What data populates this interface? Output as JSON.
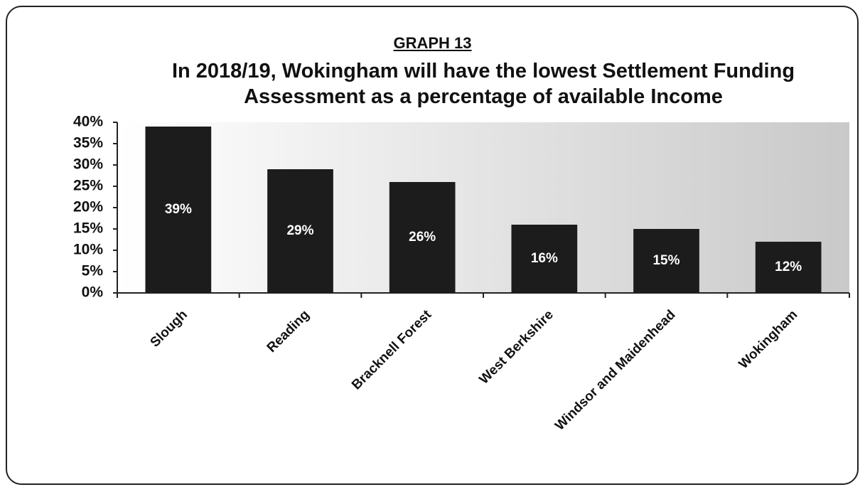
{
  "chart_data": {
    "type": "bar",
    "title": "GRAPH 13",
    "subtitle": "In 2018/19, Wokingham will have the lowest Settlement Funding Assessment as a percentage of available Income",
    "categories": [
      "Slough",
      "Reading",
      "Bracknell Forest",
      "West Berkshire",
      "Windsor and Maidenhead",
      "Wokingham"
    ],
    "values": [
      39,
      29,
      26,
      16,
      15,
      12
    ],
    "value_labels": [
      "39%",
      "29%",
      "26%",
      "16%",
      "15%",
      "12%"
    ],
    "color": "#1c1c1c",
    "ylim": [
      0,
      40
    ],
    "yticks": [
      {
        "value": 0,
        "label": "0%"
      },
      {
        "value": 5,
        "label": "5%"
      },
      {
        "value": 10,
        "label": "10%"
      },
      {
        "value": 15,
        "label": "15%"
      },
      {
        "value": 20,
        "label": "20%"
      },
      {
        "value": 25,
        "label": "25%"
      },
      {
        "value": 30,
        "label": "30%"
      },
      {
        "value": 35,
        "label": "35%"
      },
      {
        "value": 40,
        "label": "40%"
      }
    ],
    "grid": false
  }
}
